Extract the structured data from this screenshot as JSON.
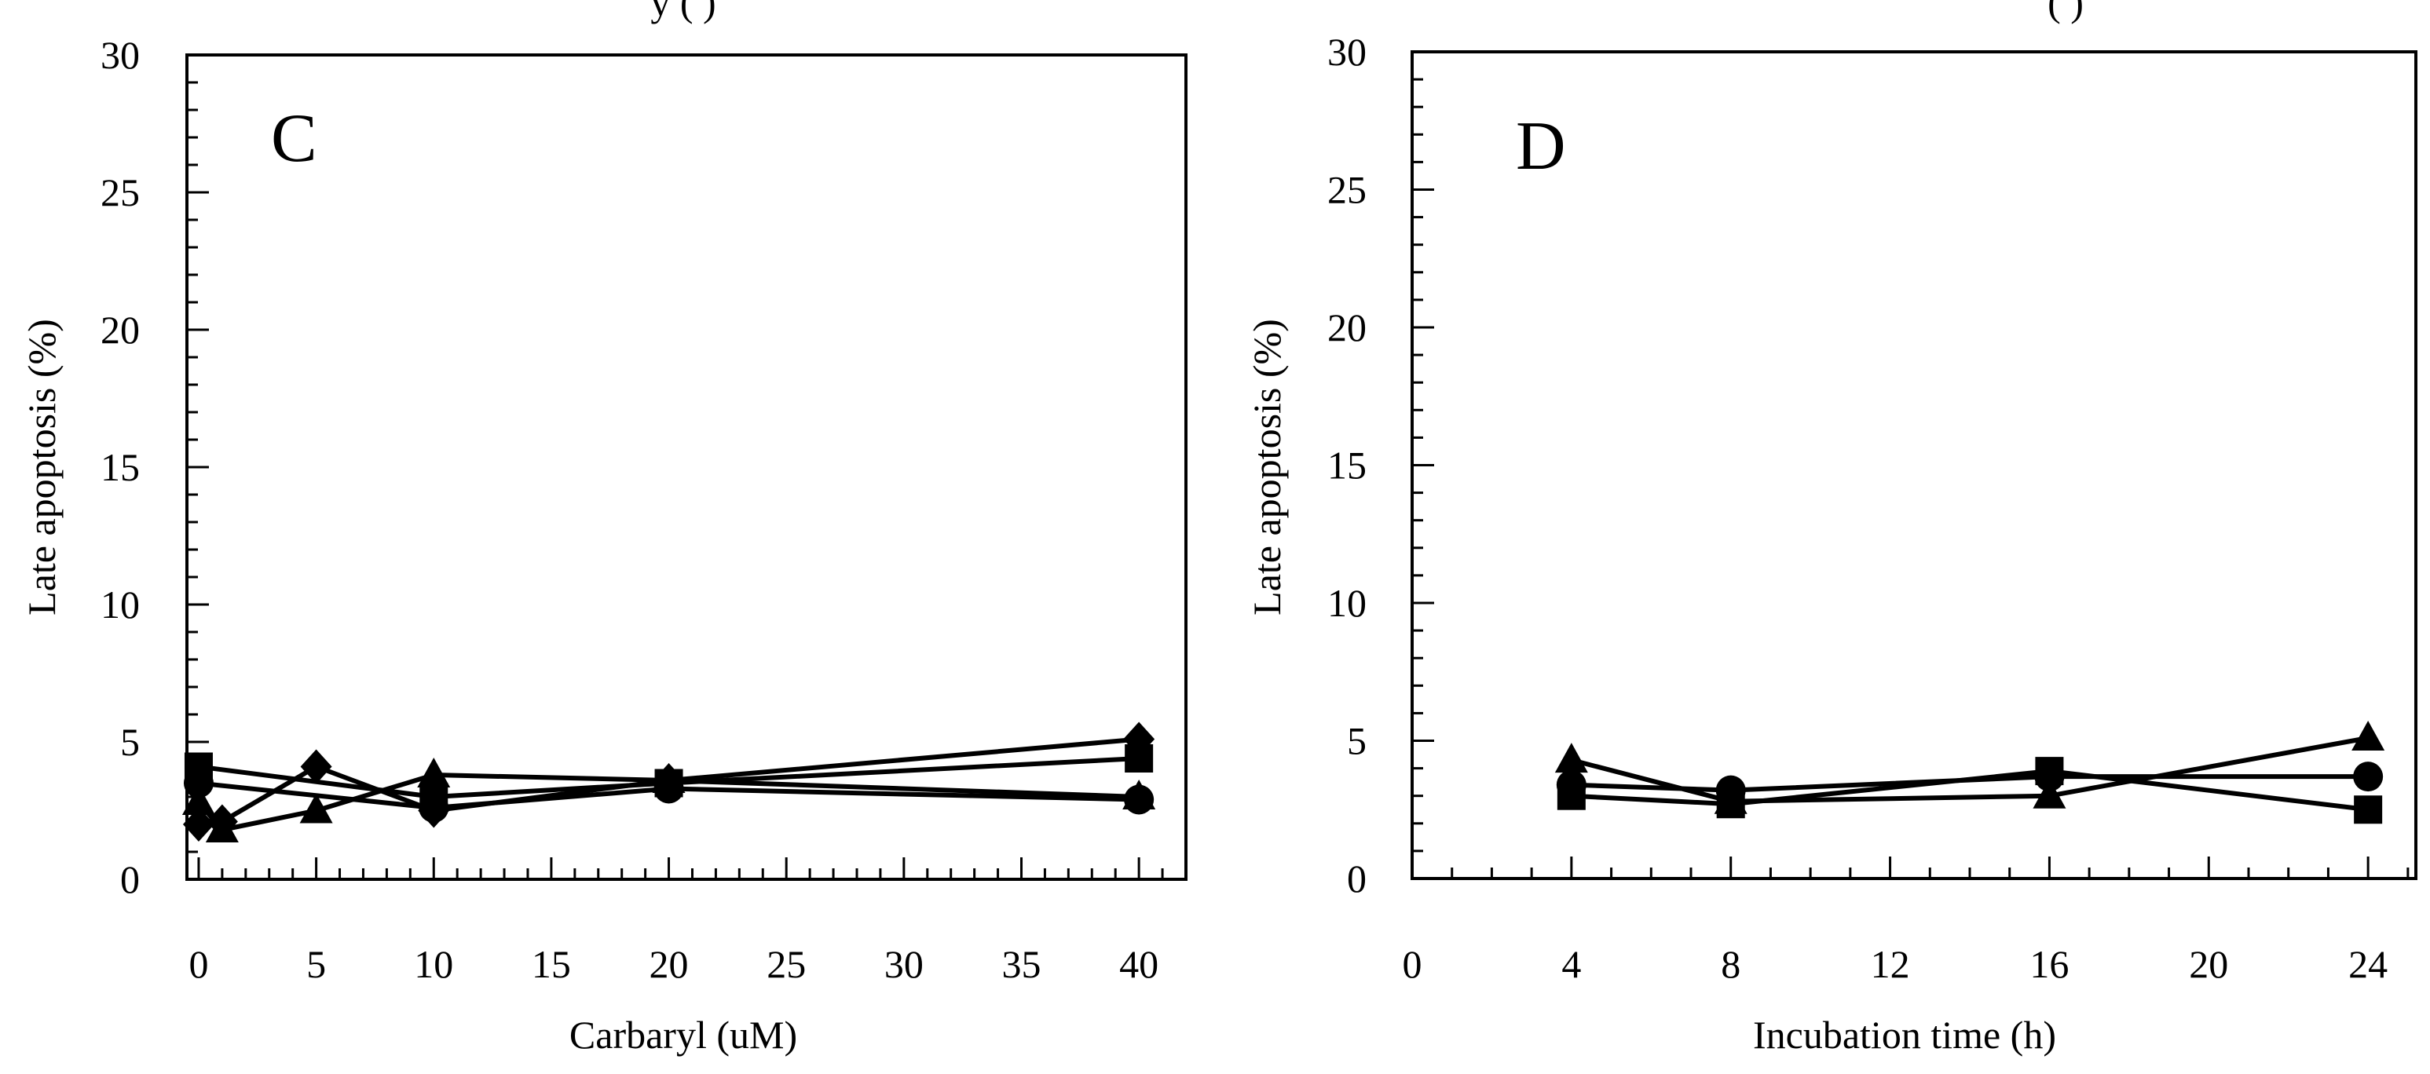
{
  "chart_data": [
    {
      "type": "line",
      "panel_label": "C",
      "top_partial_text": "y ( )",
      "xlabel": "Carbaryl (uM)",
      "ylabel": "Late apoptosis (%)",
      "xlim": [
        -0.5,
        42
      ],
      "ylim": [
        0,
        30
      ],
      "xticks": [
        0,
        5,
        10,
        15,
        20,
        25,
        30,
        35,
        40
      ],
      "xtick_labels": [
        "0",
        "5",
        "10",
        "15",
        "20",
        "25",
        "30",
        "35",
        "40"
      ],
      "yticks": [
        0,
        5,
        10,
        15,
        20,
        25,
        30
      ],
      "ytick_labels": [
        "0",
        "5",
        "10",
        "15",
        "20",
        "25",
        "30"
      ],
      "x_minor_step": 1,
      "y_minor_step": 1,
      "series": [
        {
          "name": "square",
          "marker": "square",
          "x": [
            0,
            10,
            20,
            40
          ],
          "y": [
            4.1,
            3.0,
            3.5,
            4.4
          ]
        },
        {
          "name": "circle",
          "marker": "circle",
          "x": [
            0,
            10,
            20,
            40
          ],
          "y": [
            3.5,
            2.6,
            3.3,
            2.9
          ]
        },
        {
          "name": "triangle",
          "marker": "triangle",
          "x": [
            0,
            1,
            5,
            10,
            20,
            40
          ],
          "y": [
            2.8,
            1.8,
            2.5,
            3.8,
            3.6,
            3.0
          ]
        },
        {
          "name": "diamond",
          "marker": "diamond",
          "x": [
            0,
            1,
            5,
            10,
            20,
            40
          ],
          "y": [
            2.0,
            2.1,
            4.1,
            2.5,
            3.6,
            5.1
          ]
        }
      ]
    },
    {
      "type": "line",
      "panel_label": "D",
      "top_partial_text": "( )",
      "xlabel": "Incubation time (h)",
      "ylabel": "Late apoptosis (%)",
      "xlim": [
        0,
        25.2
      ],
      "ylim": [
        0,
        30
      ],
      "xticks": [
        0,
        4,
        8,
        12,
        16,
        20,
        24
      ],
      "xtick_labels": [
        "0",
        "4",
        "8",
        "12",
        "16",
        "20",
        "24"
      ],
      "yticks": [
        0,
        5,
        10,
        15,
        20,
        25,
        30
      ],
      "ytick_labels": [
        "0",
        "5",
        "10",
        "15",
        "20",
        "25",
        "30"
      ],
      "x_minor_step": 1,
      "y_minor_step": 1,
      "series": [
        {
          "name": "square",
          "marker": "square",
          "x": [
            4,
            8,
            16,
            24
          ],
          "y": [
            3.0,
            2.7,
            3.9,
            2.5
          ]
        },
        {
          "name": "circle",
          "marker": "circle",
          "x": [
            4,
            8,
            16,
            24
          ],
          "y": [
            3.4,
            3.2,
            3.7,
            3.7
          ]
        },
        {
          "name": "triangle",
          "marker": "triangle",
          "x": [
            4,
            8,
            16,
            24
          ],
          "y": [
            4.3,
            2.8,
            3.0,
            5.1
          ]
        }
      ]
    }
  ]
}
